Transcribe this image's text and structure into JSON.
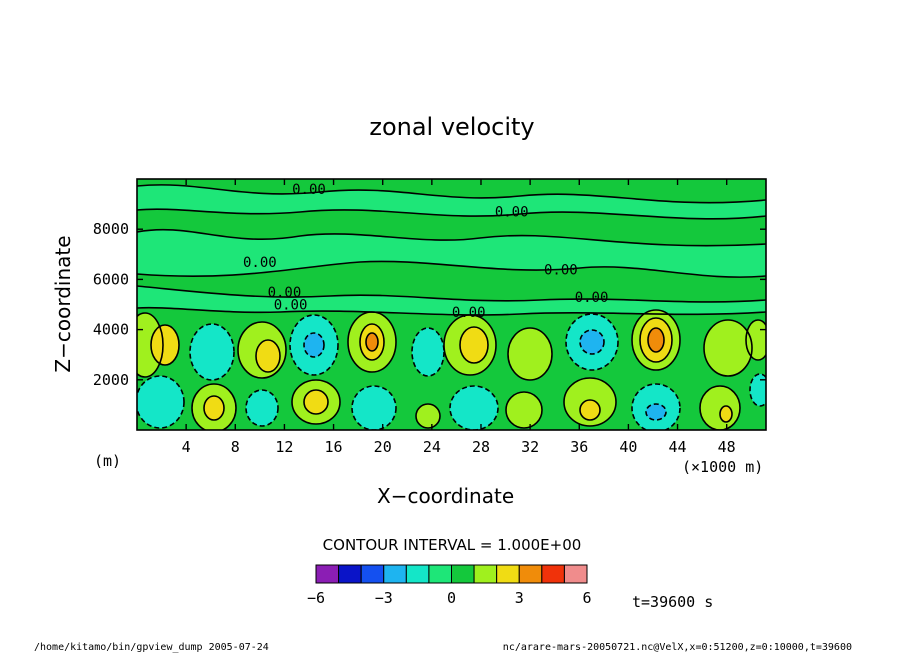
{
  "chart_data": {
    "type": "contour",
    "title": "zonal velocity",
    "xlabel": "X−coordinate",
    "ylabel": "Z−coordinate",
    "x_unit": "(×1000 m)",
    "y_unit": "(m)",
    "xlim": [
      0,
      51.2
    ],
    "ylim": [
      0,
      10000
    ],
    "x_ticks": [
      4,
      8,
      12,
      16,
      20,
      24,
      28,
      32,
      36,
      40,
      44,
      48
    ],
    "x_tick_labels": [
      "4",
      "8",
      "12",
      "16",
      "20",
      "24",
      "28",
      "32",
      "36",
      "40",
      "44",
      "48"
    ],
    "y_ticks": [
      2000,
      4000,
      6000,
      8000
    ],
    "y_tick_labels": [
      "2000",
      "4000",
      "6000",
      "8000"
    ],
    "contour_interval_text": "CONTOUR INTERVAL = 1.000E+00",
    "contour_labels": [
      {
        "text": "0.00",
        "x": 14,
        "z": 9400
      },
      {
        "text": "0.00",
        "x": 30.5,
        "z": 8500
      },
      {
        "text": "0.00",
        "x": 10,
        "z": 6500
      },
      {
        "text": "0.00",
        "x": 34.5,
        "z": 6200
      },
      {
        "text": "0.00",
        "x": 12,
        "z": 5300
      },
      {
        "text": "0.00",
        "x": 37,
        "z": 5100
      },
      {
        "text": "0.00",
        "x": 12.5,
        "z": 4800
      },
      {
        "text": "0.00",
        "x": 27,
        "z": 4500
      }
    ],
    "colorbar": {
      "levels": [
        -6,
        -5,
        -4,
        -3,
        -2,
        -1,
        0,
        1,
        2,
        3,
        4,
        5,
        6
      ],
      "tick_labels": [
        "−6",
        "−3",
        "0",
        "3",
        "6"
      ],
      "tick_values": [
        -6,
        -3,
        0,
        3,
        6
      ],
      "colors": [
        "#8b1eb4",
        "#0a14c8",
        "#1450f0",
        "#1eb4f0",
        "#14e6c8",
        "#1ee678",
        "#14c83c",
        "#a0f01e",
        "#f0dc14",
        "#f08c0a",
        "#f0320a",
        "#f08c8c"
      ]
    },
    "time_label": "t=39600 s"
  },
  "footer": {
    "left": "/home/kitamo/bin/gpview_dump  2005-07-24",
    "right": "nc/arare-mars-20050721.nc@VelX,x=0:51200,z=0:10000,t=39600"
  }
}
